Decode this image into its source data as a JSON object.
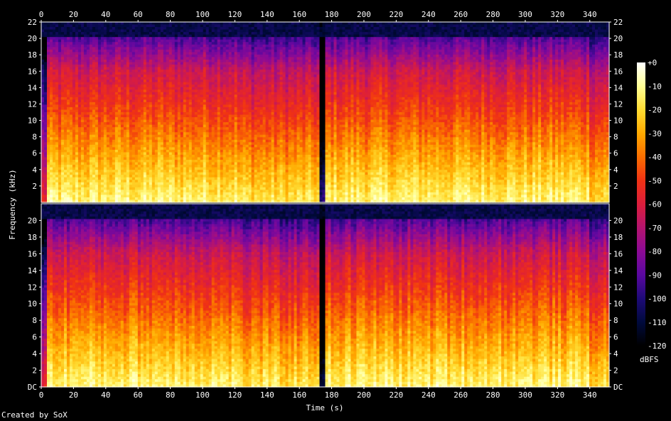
{
  "chart_data": {
    "type": "heatmap",
    "title": "",
    "xlabel": "Time (s)",
    "ylabel": "Frequency (kHz)",
    "xlim": [
      0,
      352
    ],
    "ylim": [
      0,
      22
    ],
    "x_ticks": [
      0,
      20,
      40,
      60,
      80,
      100,
      120,
      140,
      160,
      180,
      200,
      220,
      240,
      260,
      280,
      300,
      320,
      340
    ],
    "y_ticks": [
      "DC",
      "2",
      "4",
      "6",
      "8",
      "10",
      "12",
      "14",
      "16",
      "18",
      "20",
      "22"
    ],
    "channels": 2,
    "colorbar": {
      "label": "dBFS",
      "ticks": [
        "+0",
        "-10",
        "-20",
        "-30",
        "-40",
        "-50",
        "-60",
        "-70",
        "-80",
        "-90",
        "-100",
        "-110",
        "-120"
      ],
      "range": [
        -120,
        0
      ],
      "colors": [
        "#000000",
        "#000a3c",
        "#1e0a78",
        "#5a08a0",
        "#8c0a96",
        "#b4146e",
        "#dc1e3c",
        "#f03214",
        "#fa6e00",
        "#ffaa00",
        "#ffdc32",
        "#ffff96",
        "#ffffff"
      ]
    },
    "notes": [
      {
        "x_range": [
          172,
          176
        ],
        "description": "near-silent gap across all frequencies"
      }
    ]
  },
  "credit": "Created by SoX"
}
